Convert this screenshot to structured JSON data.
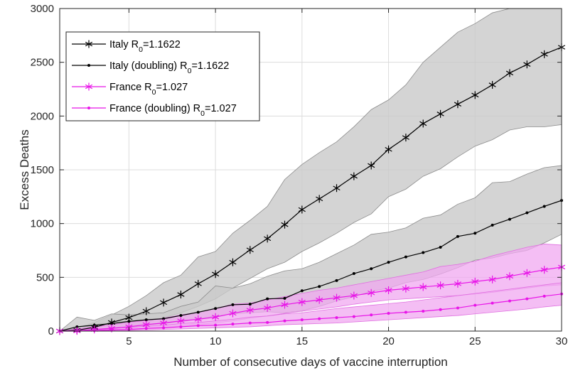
{
  "chart_data": {
    "type": "line",
    "xlabel": "Number of consecutive days of vaccine interruption",
    "ylabel": "Excess Deaths",
    "xlim": [
      1,
      30
    ],
    "ylim": [
      0,
      3000
    ],
    "x_ticks": [
      5,
      10,
      15,
      20,
      25,
      30
    ],
    "y_ticks": [
      0,
      500,
      1000,
      1500,
      2000,
      2500,
      3000
    ],
    "x_tick_labels": [
      "5",
      "10",
      "15",
      "20",
      "25",
      "30"
    ],
    "y_tick_labels": [
      "0",
      "500",
      "1000",
      "1500",
      "2000",
      "2500",
      "3000"
    ],
    "grid": true,
    "legend_position": "top-left",
    "x": [
      1,
      2,
      3,
      4,
      5,
      6,
      7,
      8,
      9,
      10,
      11,
      12,
      13,
      14,
      15,
      16,
      17,
      18,
      19,
      20,
      21,
      22,
      23,
      24,
      25,
      26,
      27,
      28,
      29,
      30
    ],
    "series": [
      {
        "name": "Italy R₀=1.1622",
        "legend_main": "Italy R",
        "legend_sub": "0",
        "legend_tail": "=1.1622",
        "color": "#000000",
        "marker": "asterisk",
        "values": [
          0,
          8,
          35,
          80,
          125,
          185,
          265,
          340,
          440,
          530,
          640,
          755,
          860,
          990,
          1130,
          1230,
          1330,
          1440,
          1540,
          1690,
          1800,
          1930,
          2020,
          2110,
          2195,
          2290,
          2400,
          2480,
          2575,
          2640
        ],
        "band_upper": [
          0,
          30,
          80,
          150,
          230,
          330,
          450,
          520,
          690,
          740,
          910,
          1030,
          1160,
          1410,
          1550,
          1660,
          1760,
          1900,
          2060,
          2150,
          2290,
          2500,
          2640,
          2780,
          2860,
          2960,
          3000,
          3000,
          3000,
          3000
        ],
        "band_lower": [
          0,
          0,
          0,
          20,
          45,
          80,
          125,
          170,
          230,
          300,
          400,
          490,
          580,
          640,
          740,
          820,
          910,
          1010,
          1090,
          1250,
          1320,
          1440,
          1510,
          1620,
          1720,
          1780,
          1870,
          1900,
          1900,
          1920
        ]
      },
      {
        "name": "Italy (doubling) R₀=1.1622",
        "legend_main": "Italy (doubling) R",
        "legend_sub": "0",
        "legend_tail": "=1.1622",
        "color": "#000000",
        "marker": "dot",
        "values": [
          0,
          40,
          55,
          70,
          90,
          105,
          115,
          145,
          175,
          210,
          245,
          250,
          300,
          305,
          375,
          415,
          470,
          535,
          580,
          640,
          690,
          730,
          780,
          880,
          910,
          985,
          1040,
          1100,
          1160,
          1215
        ],
        "band_upper": [
          0,
          130,
          100,
          160,
          150,
          160,
          170,
          230,
          270,
          420,
          400,
          440,
          510,
          560,
          580,
          640,
          720,
          800,
          900,
          920,
          960,
          1050,
          1080,
          1180,
          1240,
          1380,
          1390,
          1460,
          1520,
          1540
        ],
        "band_lower": [
          0,
          0,
          10,
          30,
          40,
          55,
          70,
          85,
          115,
          140,
          160,
          170,
          180,
          170,
          190,
          230,
          280,
          320,
          370,
          400,
          450,
          480,
          530,
          590,
          660,
          680,
          720,
          750,
          820,
          900
        ]
      },
      {
        "name": "France R₀=1.027",
        "legend_main": "France R",
        "legend_sub": "0",
        "legend_tail": "=1.027",
        "color": "#e815e8",
        "marker": "asterisk",
        "values": [
          0,
          2,
          15,
          25,
          40,
          60,
          75,
          95,
          110,
          130,
          165,
          195,
          215,
          245,
          270,
          290,
          310,
          330,
          355,
          380,
          395,
          410,
          425,
          440,
          460,
          480,
          510,
          540,
          570,
          595
        ],
        "band_upper": [
          0,
          20,
          40,
          60,
          80,
          100,
          120,
          150,
          175,
          210,
          250,
          260,
          290,
          320,
          350,
          380,
          400,
          430,
          460,
          490,
          520,
          550,
          600,
          620,
          650,
          700,
          740,
          780,
          810,
          800
        ],
        "band_lower": [
          0,
          0,
          0,
          5,
          15,
          25,
          35,
          45,
          60,
          75,
          95,
          120,
          140,
          165,
          185,
          205,
          225,
          250,
          270,
          290,
          300,
          310,
          320,
          330,
          345,
          360,
          380,
          400,
          420,
          430
        ]
      },
      {
        "name": "France (doubling) R₀=1.027",
        "legend_main": "France (doubling) R",
        "legend_sub": "0",
        "legend_tail": "=1.027",
        "color": "#e815e8",
        "marker": "dot",
        "values": [
          0,
          0,
          5,
          10,
          15,
          25,
          30,
          40,
          50,
          55,
          65,
          75,
          80,
          95,
          105,
          115,
          125,
          135,
          150,
          165,
          175,
          185,
          200,
          215,
          240,
          260,
          280,
          300,
          325,
          345
        ],
        "band_upper": [
          0,
          5,
          15,
          30,
          35,
          45,
          55,
          70,
          80,
          95,
          110,
          130,
          140,
          160,
          170,
          190,
          210,
          225,
          240,
          255,
          270,
          290,
          310,
          330,
          350,
          370,
          390,
          410,
          430,
          450
        ],
        "band_lower": [
          0,
          0,
          0,
          0,
          5,
          10,
          15,
          20,
          25,
          30,
          35,
          40,
          50,
          60,
          65,
          70,
          75,
          85,
          95,
          105,
          115,
          125,
          135,
          145,
          160,
          175,
          190,
          205,
          225,
          240
        ]
      }
    ]
  },
  "colors": {
    "grid": "#dcdcdc",
    "axis": "#262626",
    "italy_band": "#c9c9c9",
    "italy_band_edge": "#8c8c8c",
    "france_band": "#f0a8f0",
    "france_band_edge": "#e070e0"
  }
}
